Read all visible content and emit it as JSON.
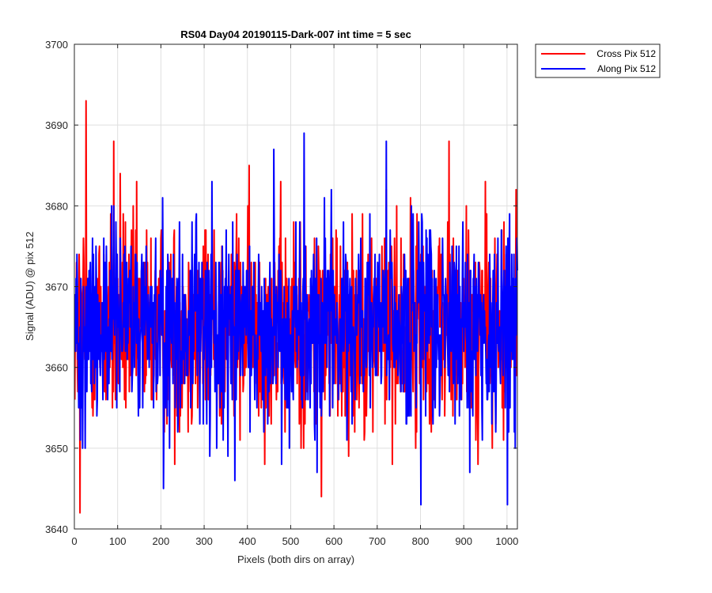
{
  "chart_data": {
    "type": "line",
    "title": "RS04 Day04 20190115-Dark-007 int time = 5 sec",
    "xlabel": "Pixels (both dirs on array)",
    "ylabel": "Signal (ADU) @ pix 512",
    "xlim": [
      0,
      1024
    ],
    "ylim": [
      3640,
      3700
    ],
    "xticks": [
      0,
      100,
      200,
      300,
      400,
      500,
      600,
      700,
      800,
      900,
      1000
    ],
    "yticks": [
      3640,
      3650,
      3660,
      3670,
      3680,
      3690,
      3700
    ],
    "grid": true,
    "legend_position": "outside-top-right",
    "series": [
      {
        "name": "Cross Pix 512",
        "color": "#ff0000",
        "mean": 3665,
        "noise_range": [
          3642,
          3693
        ],
        "notable_points": [
          [
            12,
            3642
          ],
          [
            26,
            3693
          ],
          [
            90,
            3688
          ],
          [
            105,
            3684
          ],
          [
            570,
            3644
          ],
          [
            720,
            3682
          ],
          [
            865,
            3688
          ],
          [
            1020,
            3682
          ]
        ]
      },
      {
        "name": "Along Pix 512",
        "color": "#0000ff",
        "mean": 3665,
        "noise_range": [
          3643,
          3689
        ],
        "notable_points": [
          [
            530,
            3689
          ],
          [
            460,
            3687
          ],
          [
            720,
            3688
          ],
          [
            800,
            3643
          ],
          [
            1000,
            3643
          ],
          [
            370,
            3646
          ],
          [
            205,
            3645
          ]
        ]
      }
    ]
  }
}
